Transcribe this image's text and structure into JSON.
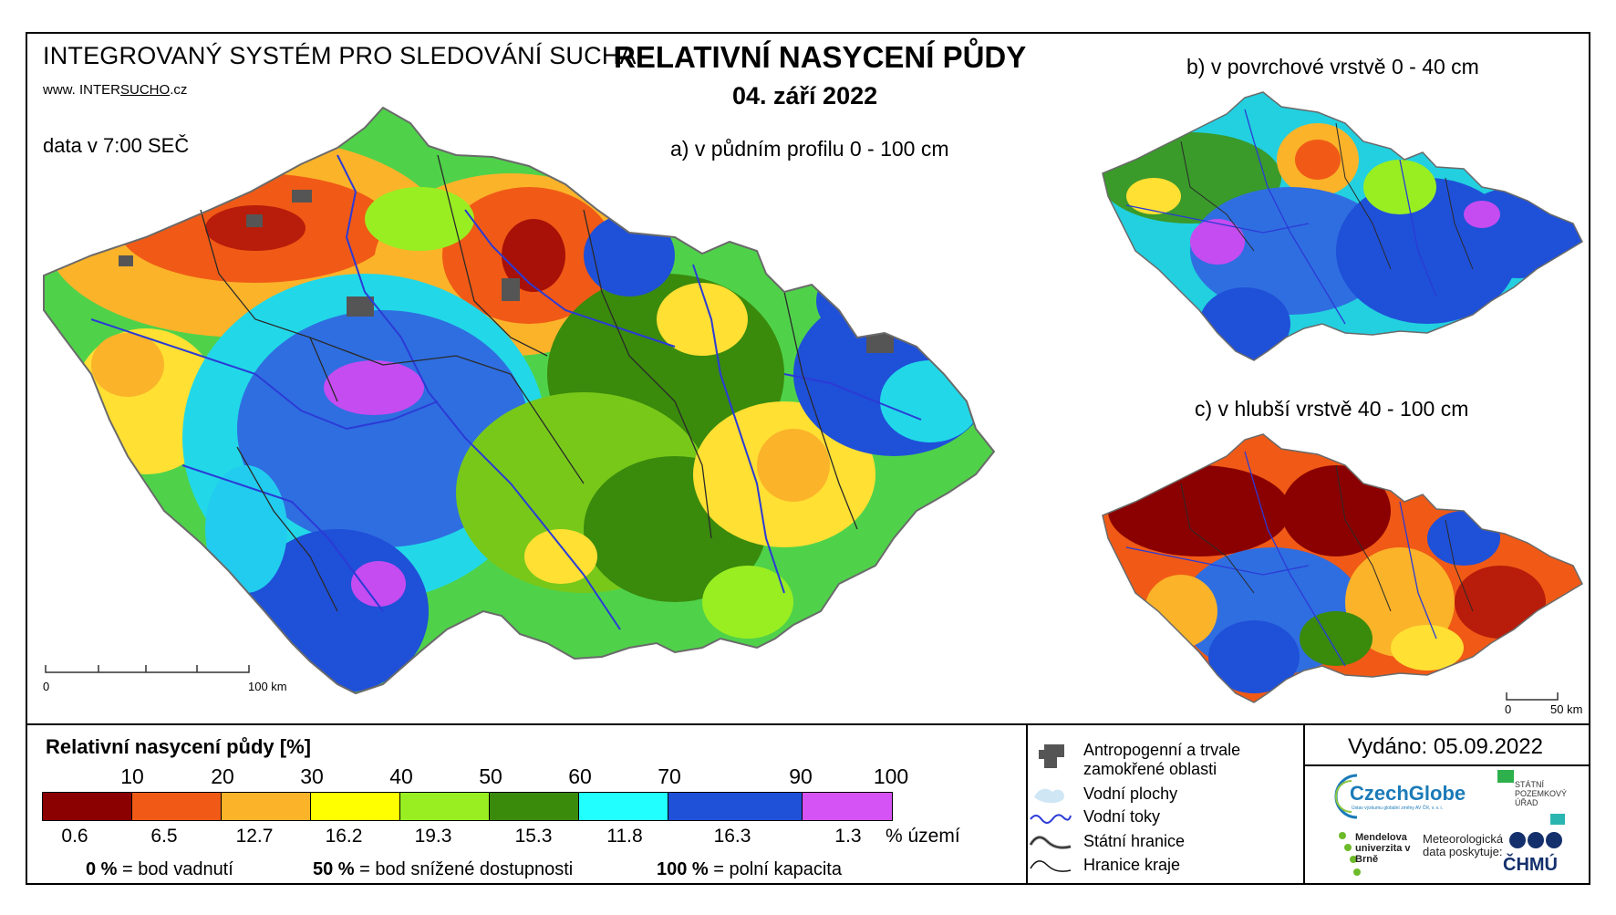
{
  "header": {
    "system_title": "INTEGROVANÝ SYSTÉM PRO SLEDOVÁNÍ SUCHA",
    "website_prefix": "www. INTER",
    "website_sucho": "SUCHO",
    "website_suffix": ".cz",
    "data_time": "data v 7:00 SEČ",
    "main_title": "RELATIVNÍ NASYCENÍ PŮDY",
    "date": "04. září 2022"
  },
  "maps": {
    "a_label": "a) v půdním profilu 0 - 100 cm",
    "b_label": "b) v povrchové vrstvě 0 - 40 cm",
    "c_label": "c) v hlubší vrstvě 40 - 100 cm",
    "scale_main_start": "0",
    "scale_main_end": "100 km",
    "scale_small_start": "0",
    "scale_small_end": "50 km"
  },
  "legend": {
    "title": "Relativní nasycení půdy [%]",
    "ticks": [
      "10",
      "20",
      "30",
      "40",
      "50",
      "60",
      "70",
      "90",
      "100"
    ],
    "classes": [
      {
        "color": "#8b0000",
        "share": "0.6"
      },
      {
        "color": "#f05a16",
        "share": "6.5"
      },
      {
        "color": "#fbb32a",
        "share": "12.7"
      },
      {
        "color": "#ffff00",
        "share": "16.2"
      },
      {
        "color": "#99ee22",
        "share": "19.3"
      },
      {
        "color": "#3a8a0c",
        "share": "15.3"
      },
      {
        "color": "#22ffff",
        "share": "11.8"
      },
      {
        "color": "#1f50d8",
        "share": "16.3"
      },
      {
        "color": "#d553f5",
        "share": "1.3"
      }
    ],
    "share_unit": "% území",
    "explain_0_value": "0 %",
    "explain_0_text": "= bod vadnutí",
    "explain_50_value": "50 %",
    "explain_50_text": "= bod snížené dostupnosti",
    "explain_100_value": "100 %",
    "explain_100_text": "= polní kapacita"
  },
  "symbols": {
    "anthropogenic": "Antropogenní a trvale zamokřené oblasti",
    "water_bodies": "Vodní plochy",
    "rivers": "Vodní toky",
    "state_border": "Státní hranice",
    "region_border": "Hranice kraje"
  },
  "footer": {
    "issued": "Vydáno: 05.09.2022",
    "czechglobe": "CzechGlobe",
    "czechglobe_sub": "Ústav výzkumu globální změny AV ČR, v. v. i.",
    "spu": "STÁTNÍ POZEMKOVÝ ÚŘAD",
    "mendel": "Mendelova univerzita v Brně",
    "met_data": "Meteorologická data poskytuje:",
    "chmu": "ČHMÚ"
  },
  "colors": {
    "river": "#2b3bd6",
    "anthropogenic": "#555555",
    "water": "#cfe7f5"
  }
}
